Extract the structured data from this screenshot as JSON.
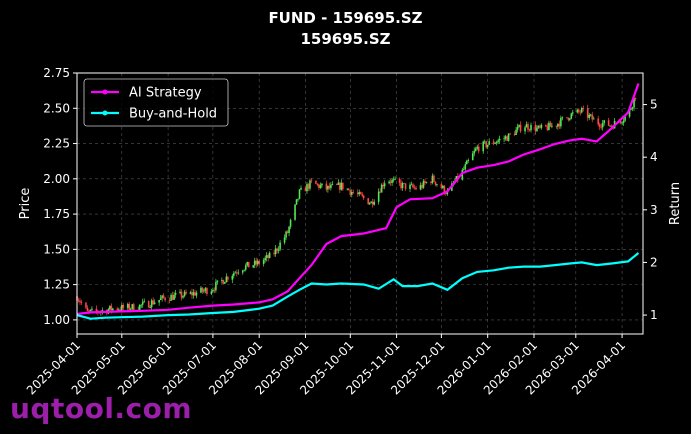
{
  "chart_data": {
    "type": "line",
    "title": "FUND - 159695.SZ",
    "subtitle": "159695.SZ",
    "ylabel_left": "Price",
    "ylabel_right": "Return",
    "xlabel": "",
    "x_ticks": [
      "2025-04-01",
      "2025-05-01",
      "2025-06-01",
      "2025-07-01",
      "2025-08-01",
      "2025-09-01",
      "2025-10-01",
      "2025-11-01",
      "2025-12-01",
      "2026-01-01",
      "2026-02-01",
      "2026-03-01",
      "2026-04-01"
    ],
    "x_range": [
      "2025-04-01",
      "2026-04-15"
    ],
    "y_left_ticks": [
      "1.00",
      "1.25",
      "1.50",
      "1.75",
      "2.00",
      "2.25",
      "2.50",
      "2.75"
    ],
    "y_left_range": [
      0.9,
      2.75
    ],
    "y_right_ticks": [
      "1",
      "2",
      "3",
      "4",
      "5"
    ],
    "y_right_range": [
      0.64,
      5.6
    ],
    "grid": true,
    "legend_position": "top-left",
    "candles": {
      "description_series": "Price",
      "close_points": [
        [
          "2025-04-01",
          1.17
        ],
        [
          "2025-04-08",
          1.05
        ],
        [
          "2025-04-15",
          1.06
        ],
        [
          "2025-04-25",
          1.08
        ],
        [
          "2025-05-10",
          1.09
        ],
        [
          "2025-05-20",
          1.12
        ],
        [
          "2025-05-31",
          1.16
        ],
        [
          "2025-06-15",
          1.18
        ],
        [
          "2025-06-30",
          1.22
        ],
        [
          "2025-07-10",
          1.3
        ],
        [
          "2025-07-20",
          1.37
        ],
        [
          "2025-07-31",
          1.4
        ],
        [
          "2025-08-10",
          1.46
        ],
        [
          "2025-08-20",
          1.62
        ],
        [
          "2025-08-28",
          1.9
        ],
        [
          "2025-09-05",
          1.97
        ],
        [
          "2025-09-15",
          1.93
        ],
        [
          "2025-09-25",
          1.95
        ],
        [
          "2025-10-05",
          1.89
        ],
        [
          "2025-10-15",
          1.83
        ],
        [
          "2025-10-25",
          2.0
        ],
        [
          "2025-11-05",
          1.95
        ],
        [
          "2025-11-15",
          1.93
        ],
        [
          "2025-11-25",
          2.0
        ],
        [
          "2025-12-05",
          1.9
        ],
        [
          "2025-12-15",
          2.05
        ],
        [
          "2025-12-25",
          2.22
        ],
        [
          "2026-01-05",
          2.26
        ],
        [
          "2026-01-15",
          2.3
        ],
        [
          "2026-01-25",
          2.38
        ],
        [
          "2026-02-05",
          2.35
        ],
        [
          "2026-02-15",
          2.38
        ],
        [
          "2026-02-25",
          2.45
        ],
        [
          "2026-03-05",
          2.48
        ],
        [
          "2026-03-15",
          2.4
        ],
        [
          "2026-03-25",
          2.38
        ],
        [
          "2026-04-05",
          2.45
        ],
        [
          "2026-04-12",
          2.65
        ]
      ]
    },
    "series": [
      {
        "name": "AI Strategy",
        "color": "#ff00ff",
        "points": [
          [
            "2025-04-01",
            1.02
          ],
          [
            "2025-04-10",
            1.05
          ],
          [
            "2025-04-20",
            1.06
          ],
          [
            "2025-05-01",
            1.07
          ],
          [
            "2025-05-15",
            1.08
          ],
          [
            "2025-06-01",
            1.1
          ],
          [
            "2025-06-15",
            1.14
          ],
          [
            "2025-07-01",
            1.18
          ],
          [
            "2025-07-15",
            1.2
          ],
          [
            "2025-08-01",
            1.24
          ],
          [
            "2025-08-10",
            1.3
          ],
          [
            "2025-08-20",
            1.45
          ],
          [
            "2025-08-28",
            1.7
          ],
          [
            "2025-09-05",
            1.95
          ],
          [
            "2025-09-15",
            2.35
          ],
          [
            "2025-09-25",
            2.5
          ],
          [
            "2025-10-10",
            2.55
          ],
          [
            "2025-10-25",
            2.65
          ],
          [
            "2025-11-01",
            3.05
          ],
          [
            "2025-11-10",
            3.2
          ],
          [
            "2025-11-25",
            3.22
          ],
          [
            "2025-12-05",
            3.35
          ],
          [
            "2025-12-15",
            3.7
          ],
          [
            "2025-12-25",
            3.8
          ],
          [
            "2026-01-05",
            3.85
          ],
          [
            "2026-01-15",
            3.92
          ],
          [
            "2026-01-25",
            4.05
          ],
          [
            "2026-02-05",
            4.15
          ],
          [
            "2026-02-15",
            4.25
          ],
          [
            "2026-02-25",
            4.32
          ],
          [
            "2026-03-05",
            4.35
          ],
          [
            "2026-03-15",
            4.3
          ],
          [
            "2026-03-25",
            4.55
          ],
          [
            "2026-04-05",
            4.85
          ],
          [
            "2026-04-12",
            5.4
          ]
        ]
      },
      {
        "name": "Buy-and-Hold",
        "color": "#00ffff",
        "points": [
          [
            "2025-04-01",
            1.0
          ],
          [
            "2025-04-10",
            0.93
          ],
          [
            "2025-04-20",
            0.95
          ],
          [
            "2025-05-01",
            0.96
          ],
          [
            "2025-05-15",
            0.97
          ],
          [
            "2025-06-01",
            1.0
          ],
          [
            "2025-06-15",
            1.01
          ],
          [
            "2025-07-01",
            1.04
          ],
          [
            "2025-07-15",
            1.06
          ],
          [
            "2025-08-01",
            1.12
          ],
          [
            "2025-08-10",
            1.18
          ],
          [
            "2025-08-20",
            1.35
          ],
          [
            "2025-08-28",
            1.48
          ],
          [
            "2025-09-05",
            1.6
          ],
          [
            "2025-09-15",
            1.58
          ],
          [
            "2025-09-25",
            1.6
          ],
          [
            "2025-10-10",
            1.58
          ],
          [
            "2025-10-20",
            1.5
          ],
          [
            "2025-10-30",
            1.68
          ],
          [
            "2025-11-05",
            1.55
          ],
          [
            "2025-11-15",
            1.55
          ],
          [
            "2025-11-25",
            1.6
          ],
          [
            "2025-12-05",
            1.48
          ],
          [
            "2025-12-15",
            1.7
          ],
          [
            "2025-12-25",
            1.82
          ],
          [
            "2026-01-05",
            1.85
          ],
          [
            "2026-01-15",
            1.9
          ],
          [
            "2026-01-25",
            1.92
          ],
          [
            "2026-02-05",
            1.92
          ],
          [
            "2026-02-15",
            1.95
          ],
          [
            "2026-02-25",
            1.98
          ],
          [
            "2026-03-05",
            2.0
          ],
          [
            "2026-03-15",
            1.95
          ],
          [
            "2026-03-25",
            1.98
          ],
          [
            "2026-04-05",
            2.02
          ],
          [
            "2026-04-12",
            2.18
          ]
        ]
      }
    ]
  },
  "watermark": "uqtool.com",
  "colors": {
    "up": "#55e655",
    "down": "#ff4444",
    "background": "#000000",
    "grid": "#555555"
  }
}
